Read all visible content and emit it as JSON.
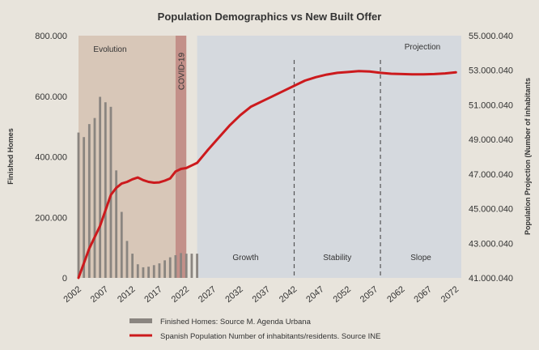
{
  "chart_data": {
    "type": "bar",
    "title": "Population Demographics vs New Built Offer",
    "ylabel_left": "Finished Homes",
    "ylabel_right": "Population Projection (Number of inhabitants",
    "x_ticks": [
      "2002",
      "2007",
      "2012",
      "2017",
      "2022",
      "2027",
      "2032",
      "2037",
      "2042",
      "2047",
      "2052",
      "2057",
      "2062",
      "2067",
      "2072"
    ],
    "y_left_ticks": [
      "0",
      "200.000",
      "400.000",
      "600.000",
      "800.000"
    ],
    "y_right_ticks": [
      "41.000.040",
      "43.000.040",
      "45.000.040",
      "47.000.040",
      "49.000.040",
      "51.000.040",
      "53.000.040",
      "55.000.040"
    ],
    "ylim_left": [
      0,
      800000
    ],
    "ylim_right": [
      41000040,
      55000040
    ],
    "xlim": [
      2002,
      2073
    ],
    "grid": false,
    "legend_position": "bottom-center",
    "colors": {
      "background": "#e8e4dc",
      "evolution_band": "#d8c7b8",
      "covid_band": "#c39089",
      "projection_band": "#d5d9de",
      "bars": "#8a8580",
      "line": "#cc1a1d"
    },
    "regions": [
      {
        "label": "Evolution",
        "from": 2002,
        "to": 2020
      },
      {
        "label": "COVID-19",
        "from": 2020,
        "to": 2022
      },
      {
        "label": "Projection",
        "from": 2024,
        "to": 2073
      }
    ],
    "phases": [
      {
        "label": "Growth",
        "from": 2024,
        "to": 2042
      },
      {
        "label": "Stability",
        "from": 2042,
        "to": 2058
      },
      {
        "label": "Slope",
        "from": 2058,
        "to": 2073
      }
    ],
    "series": [
      {
        "name": "Finished Homes: Source M. Agenda Urbana",
        "kind": "bar",
        "axis": "left",
        "x": [
          2002,
          2003,
          2004,
          2005,
          2006,
          2007,
          2008,
          2009,
          2010,
          2011,
          2012,
          2013,
          2014,
          2015,
          2016,
          2017,
          2018,
          2019,
          2020,
          2021,
          2022,
          2023,
          2024
        ],
        "values": [
          480000,
          465000,
          508000,
          528000,
          598000,
          580000,
          565000,
          355000,
          218000,
          122000,
          80000,
          45000,
          35000,
          37000,
          42000,
          48000,
          58000,
          68000,
          75000,
          82000,
          80000,
          80000,
          80000
        ]
      },
      {
        "name": "Spanish Population Number of inhabitants/residents. Source INE",
        "kind": "line",
        "axis": "right",
        "x": [
          2002,
          2004,
          2006,
          2008,
          2009,
          2010,
          2011,
          2012,
          2013,
          2014,
          2015,
          2016,
          2017,
          2018,
          2019,
          2020,
          2021,
          2022,
          2023,
          2024,
          2026,
          2028,
          2030,
          2032,
          2034,
          2036,
          2038,
          2040,
          2042,
          2044,
          2046,
          2048,
          2050,
          2052,
          2054,
          2056,
          2058,
          2060,
          2062,
          2064,
          2066,
          2068,
          2070,
          2072
        ],
        "values": [
          41000040,
          42700000,
          44000000,
          45800000,
          46200000,
          46450000,
          46550000,
          46700000,
          46800000,
          46650000,
          46550000,
          46500000,
          46520000,
          46620000,
          46750000,
          47150000,
          47300000,
          47350000,
          47500000,
          47650000,
          48400000,
          49100000,
          49800000,
          50400000,
          50900000,
          51200000,
          51500000,
          51800000,
          52100000,
          52400000,
          52600000,
          52750000,
          52850000,
          52900000,
          52950000,
          52930000,
          52850000,
          52800000,
          52780000,
          52760000,
          52760000,
          52780000,
          52820000,
          52880000
        ]
      }
    ]
  }
}
